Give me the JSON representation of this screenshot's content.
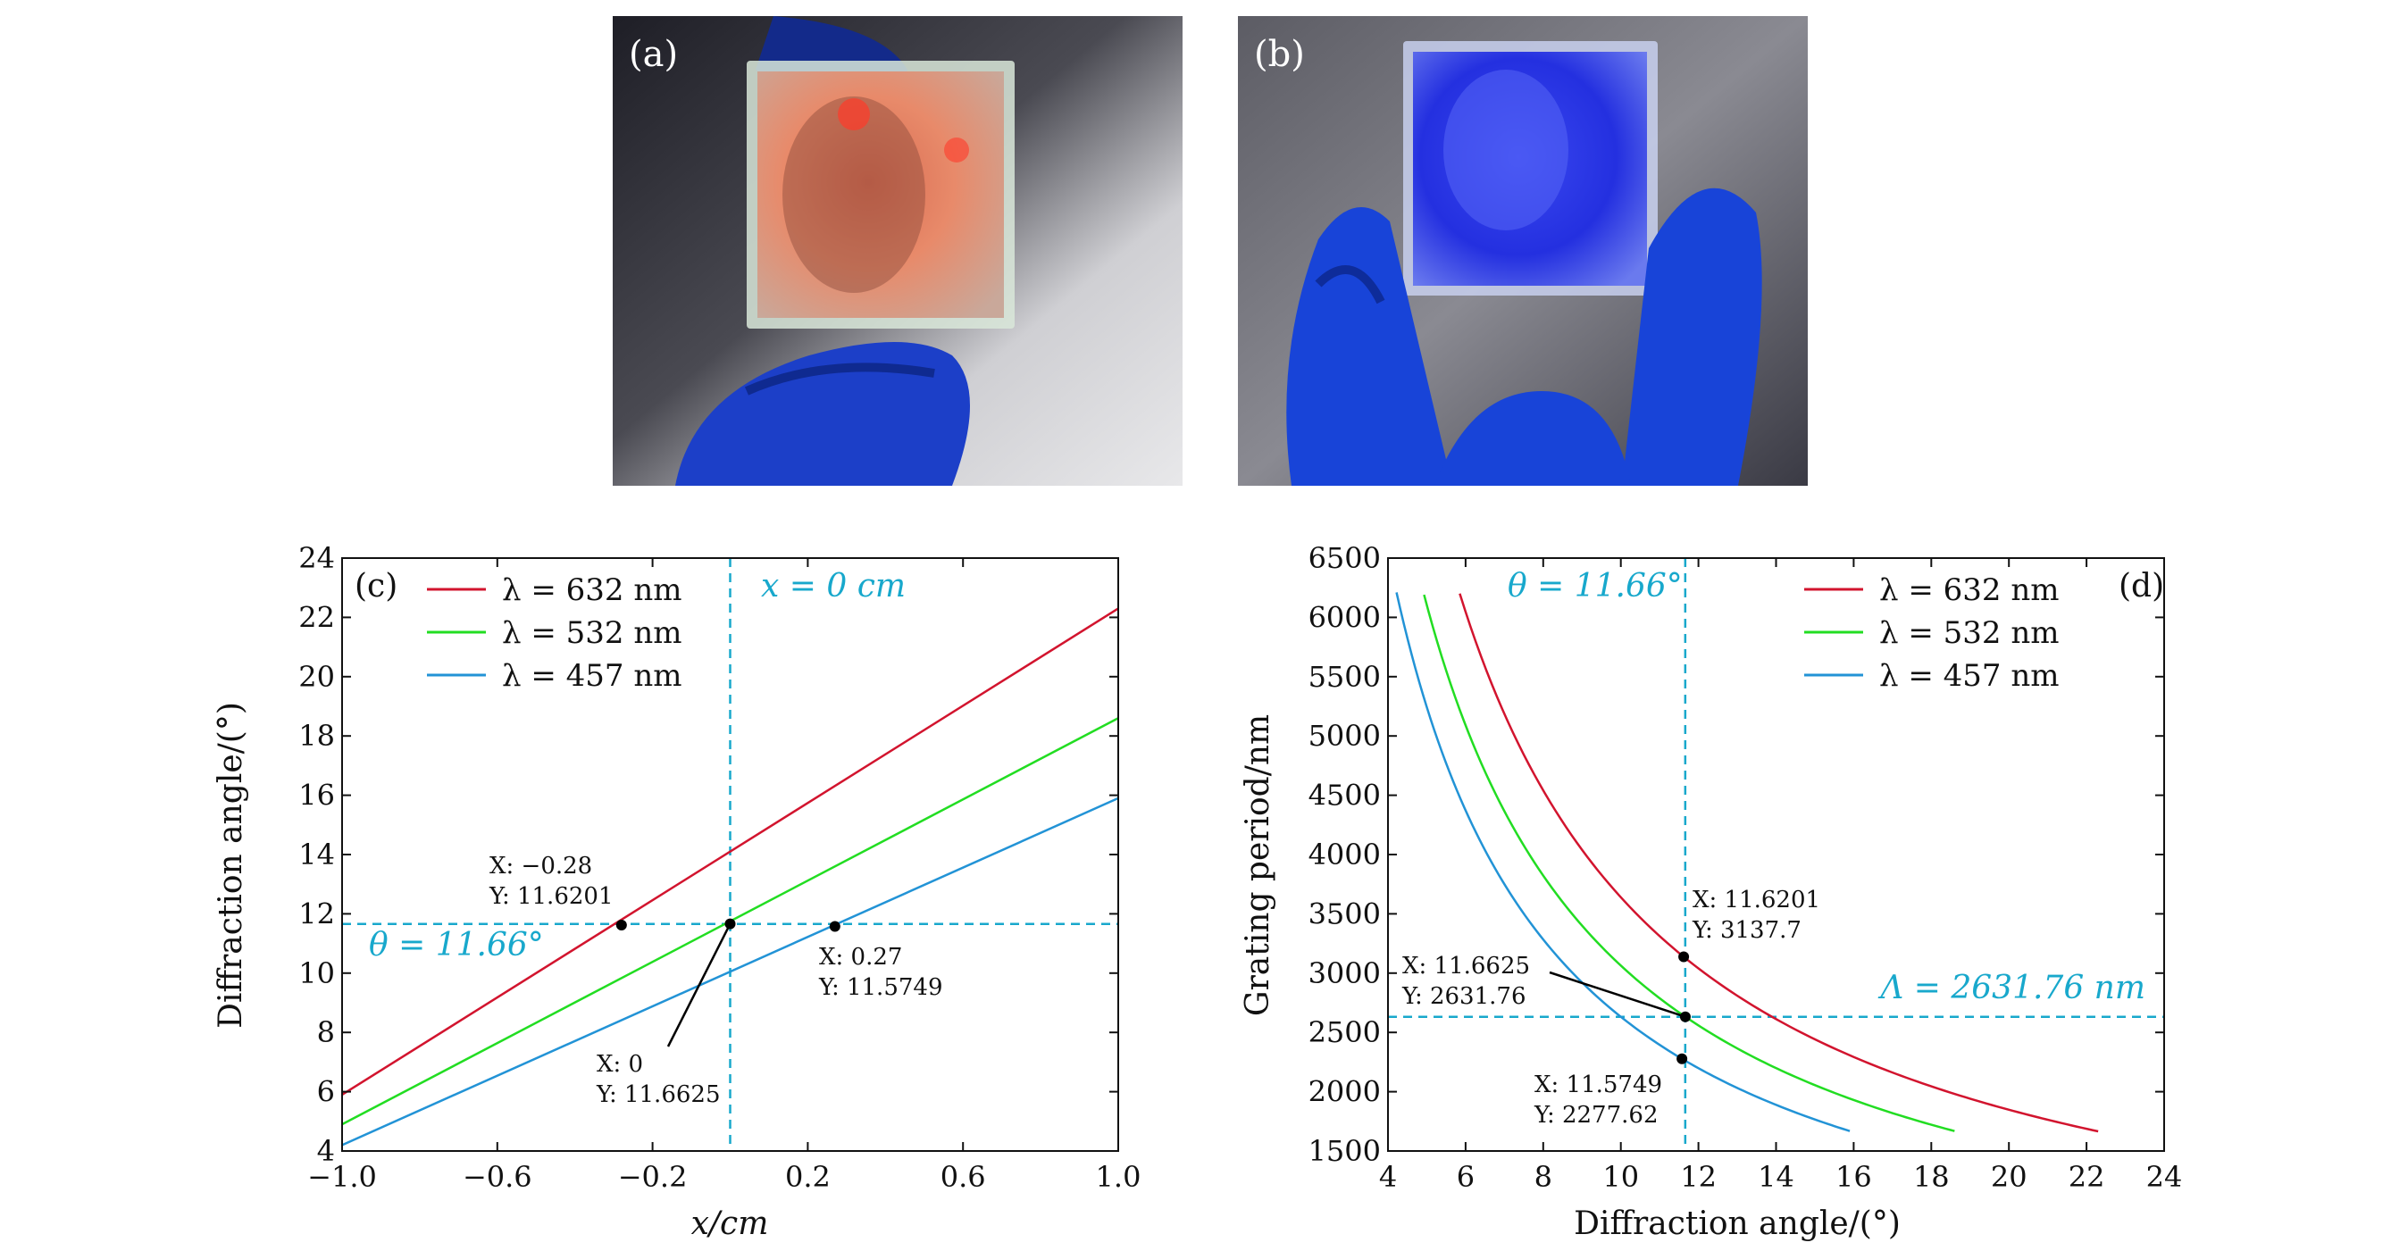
{
  "photos": [
    {
      "label": "(a)",
      "tint": "#e8775a",
      "bg": "#2a2a32",
      "glove": "#1a3fcf"
    },
    {
      "label": "(b)",
      "tint": "#2a35e8",
      "bg": "#30303a",
      "glove": "#1844d8"
    }
  ],
  "chart_data": [
    {
      "type": "line",
      "panel_label": "(c)",
      "xlabel": "x/cm",
      "ylabel": "Diffraction angle/(°)",
      "xlim": [
        -1.0,
        1.0
      ],
      "ylim": [
        4,
        24
      ],
      "xticks": [
        -1.0,
        -0.6,
        -0.2,
        0.2,
        0.6,
        1.0
      ],
      "xtick_labels": [
        "−1.0",
        "−0.6",
        "−0.2",
        "0.2",
        "0.6",
        "1.0"
      ],
      "yticks": [
        4,
        6,
        8,
        10,
        12,
        14,
        16,
        18,
        20,
        22,
        24
      ],
      "legend_position": "top-left",
      "series": [
        {
          "name": "λ = 632 nm",
          "color": "#d2142e",
          "x": [
            -1.0,
            1.0
          ],
          "y": [
            5.9,
            22.3
          ]
        },
        {
          "name": "λ = 532 nm",
          "color": "#22dd22",
          "x": [
            -1.0,
            1.0
          ],
          "y": [
            4.9,
            18.6
          ]
        },
        {
          "name": "λ = 457 nm",
          "color": "#2293d6",
          "x": [
            -1.0,
            1.0
          ],
          "y": [
            4.2,
            15.9
          ]
        }
      ],
      "ref_lines": {
        "vertical_x": 0,
        "vertical_label": "x = 0 cm",
        "horizontal_y": 11.66,
        "horizontal_label": "θ = 11.66°",
        "color": "#18a8cc"
      },
      "points": [
        {
          "x": -0.28,
          "y": 11.6201,
          "label_x": "X: −0.28",
          "label_y": "Y: 11.6201"
        },
        {
          "x": 0,
          "y": 11.6625,
          "label_x": "X: 0",
          "label_y": "Y: 11.6625"
        },
        {
          "x": 0.27,
          "y": 11.5749,
          "label_x": "X: 0.27",
          "label_y": "Y: 11.5749"
        }
      ]
    },
    {
      "type": "line",
      "panel_label": "(d)",
      "xlabel": "Diffraction angle/(°)",
      "ylabel": "Grating period/nm",
      "xlim": [
        4,
        24
      ],
      "ylim": [
        1500,
        6500
      ],
      "xticks": [
        4,
        6,
        8,
        10,
        12,
        14,
        16,
        18,
        20,
        22,
        24
      ],
      "yticks": [
        1500,
        2000,
        2500,
        3000,
        3500,
        4000,
        4500,
        5000,
        5500,
        6000,
        6500
      ],
      "legend_position": "top-right",
      "series": [
        {
          "name": "λ = 632 nm",
          "color": "#d2142e",
          "wavelength": 632,
          "x_range": [
            5.85,
            22.3
          ]
        },
        {
          "name": "λ = 532 nm",
          "color": "#22dd22",
          "wavelength": 532,
          "x_range": [
            4.93,
            18.6
          ]
        },
        {
          "name": "λ = 457 nm",
          "color": "#2293d6",
          "wavelength": 457,
          "x_range": [
            4.22,
            15.9
          ]
        }
      ],
      "ref_lines": {
        "vertical_x": 11.66,
        "vertical_label": "θ = 11.66°",
        "horizontal_y": 2631.76,
        "horizontal_label": "Λ = 2631.76 nm",
        "color": "#18a8cc"
      },
      "points": [
        {
          "x": 11.6201,
          "y": 3137.7,
          "label_x": "X: 11.6201",
          "label_y": "Y: 3137.7"
        },
        {
          "x": 11.6625,
          "y": 2631.76,
          "label_x": "X: 11.6625",
          "label_y": "Y: 2631.76"
        },
        {
          "x": 11.5749,
          "y": 2277.62,
          "label_x": "X: 11.5749",
          "label_y": "Y: 2277.62"
        }
      ]
    }
  ]
}
